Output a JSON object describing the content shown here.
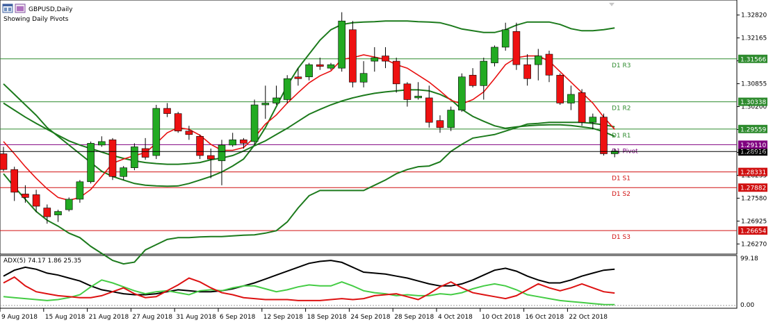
{
  "header": {
    "symbol_label": "GBPUSD,Daily",
    "subtitle": "Showing Daily Pivots"
  },
  "indicator": {
    "label": "ADX(5) 74.17 1.86 25.35",
    "scale_top": "99.18",
    "scale_bottom": "0.00"
  },
  "colors": {
    "bull": "#22aa22",
    "bear": "#ee1111",
    "bollinger": "#1c7a1c",
    "ma": "#e81010",
    "r_level": "#2e8b2e",
    "s_level": "#d01010",
    "pivot": "#800080",
    "adx": "#000000",
    "plus_di": "#44cc44",
    "minus_di": "#dd1111"
  },
  "chart_data": [
    {
      "type": "candlestick",
      "title": "GBPUSD,Daily",
      "price_axis_labels": [
        "1.32820",
        "1.32165",
        "1.31510",
        "1.30855",
        "1.30200",
        "1.29545",
        "1.28890",
        "1.28235",
        "1.27580",
        "1.26925",
        "1.26270"
      ],
      "date_labels": [
        "9 Aug 2018",
        "15 Aug 2018",
        "21 Aug 2018",
        "27 Aug 2018",
        "31 Aug 2018",
        "6 Sep 2018",
        "12 Sep 2018",
        "18 Sep 2018",
        "24 Sep 2018",
        "28 Sep 2018",
        "4 Oct 2018",
        "10 Oct 2018",
        "16 Oct 2018",
        "22 Oct 2018"
      ],
      "ylim": [
        1.2598,
        1.3325
      ],
      "candles": [
        {
          "o": 1.2885,
          "h": 1.2905,
          "l": 1.2835,
          "c": 1.284
        },
        {
          "o": 1.284,
          "h": 1.2848,
          "l": 1.275,
          "c": 1.2775
        },
        {
          "o": 1.277,
          "h": 1.2795,
          "l": 1.2745,
          "c": 1.276
        },
        {
          "o": 1.2768,
          "h": 1.2782,
          "l": 1.2718,
          "c": 1.2735
        },
        {
          "o": 1.273,
          "h": 1.274,
          "l": 1.2685,
          "c": 1.2705
        },
        {
          "o": 1.271,
          "h": 1.2725,
          "l": 1.269,
          "c": 1.272
        },
        {
          "o": 1.2725,
          "h": 1.276,
          "l": 1.272,
          "c": 1.2755
        },
        {
          "o": 1.2755,
          "h": 1.281,
          "l": 1.2745,
          "c": 1.2805
        },
        {
          "o": 1.2805,
          "h": 1.292,
          "l": 1.28,
          "c": 1.2915
        },
        {
          "o": 1.291,
          "h": 1.2935,
          "l": 1.2905,
          "c": 1.292
        },
        {
          "o": 1.2925,
          "h": 1.293,
          "l": 1.281,
          "c": 1.282
        },
        {
          "o": 1.282,
          "h": 1.285,
          "l": 1.281,
          "c": 1.2845
        },
        {
          "o": 1.2845,
          "h": 1.2915,
          "l": 1.2838,
          "c": 1.2905
        },
        {
          "o": 1.29,
          "h": 1.293,
          "l": 1.2868,
          "c": 1.2875
        },
        {
          "o": 1.288,
          "h": 1.3025,
          "l": 1.287,
          "c": 1.3015
        },
        {
          "o": 1.3015,
          "h": 1.303,
          "l": 1.299,
          "c": 1.3
        },
        {
          "o": 1.3,
          "h": 1.3005,
          "l": 1.2945,
          "c": 1.295
        },
        {
          "o": 1.295,
          "h": 1.2965,
          "l": 1.2925,
          "c": 1.294
        },
        {
          "o": 1.2935,
          "h": 1.294,
          "l": 1.287,
          "c": 1.288
        },
        {
          "o": 1.288,
          "h": 1.29,
          "l": 1.2815,
          "c": 1.287
        },
        {
          "o": 1.2865,
          "h": 1.2925,
          "l": 1.2795,
          "c": 1.291
        },
        {
          "o": 1.291,
          "h": 1.2945,
          "l": 1.2905,
          "c": 1.2925
        },
        {
          "o": 1.2925,
          "h": 1.293,
          "l": 1.29,
          "c": 1.2915
        },
        {
          "o": 1.292,
          "h": 1.304,
          "l": 1.291,
          "c": 1.3025
        },
        {
          "o": 1.3025,
          "h": 1.308,
          "l": 1.2985,
          "c": 1.303
        },
        {
          "o": 1.303,
          "h": 1.308,
          "l": 1.3025,
          "c": 1.3045
        },
        {
          "o": 1.304,
          "h": 1.311,
          "l": 1.303,
          "c": 1.31
        },
        {
          "o": 1.3105,
          "h": 1.313,
          "l": 1.308,
          "c": 1.31
        },
        {
          "o": 1.3105,
          "h": 1.3145,
          "l": 1.3095,
          "c": 1.314
        },
        {
          "o": 1.314,
          "h": 1.316,
          "l": 1.3125,
          "c": 1.3135
        },
        {
          "o": 1.313,
          "h": 1.3145,
          "l": 1.3125,
          "c": 1.314
        },
        {
          "o": 1.313,
          "h": 1.329,
          "l": 1.312,
          "c": 1.3265
        },
        {
          "o": 1.324,
          "h": 1.3265,
          "l": 1.3075,
          "c": 1.309
        },
        {
          "o": 1.309,
          "h": 1.315,
          "l": 1.3075,
          "c": 1.3115
        },
        {
          "o": 1.315,
          "h": 1.319,
          "l": 1.312,
          "c": 1.316
        },
        {
          "o": 1.3165,
          "h": 1.319,
          "l": 1.313,
          "c": 1.315
        },
        {
          "o": 1.315,
          "h": 1.316,
          "l": 1.306,
          "c": 1.3085
        },
        {
          "o": 1.3085,
          "h": 1.309,
          "l": 1.302,
          "c": 1.304
        },
        {
          "o": 1.3045,
          "h": 1.309,
          "l": 1.304,
          "c": 1.305
        },
        {
          "o": 1.3045,
          "h": 1.308,
          "l": 1.296,
          "c": 1.2975
        },
        {
          "o": 1.298,
          "h": 1.2995,
          "l": 1.2945,
          "c": 1.296
        },
        {
          "o": 1.296,
          "h": 1.302,
          "l": 1.295,
          "c": 1.301
        },
        {
          "o": 1.301,
          "h": 1.3115,
          "l": 1.3005,
          "c": 1.3105
        },
        {
          "o": 1.311,
          "h": 1.313,
          "l": 1.3075,
          "c": 1.308
        },
        {
          "o": 1.308,
          "h": 1.316,
          "l": 1.304,
          "c": 1.315
        },
        {
          "o": 1.3145,
          "h": 1.3195,
          "l": 1.3135,
          "c": 1.319
        },
        {
          "o": 1.319,
          "h": 1.326,
          "l": 1.318,
          "c": 1.324
        },
        {
          "o": 1.3235,
          "h": 1.326,
          "l": 1.3125,
          "c": 1.314
        },
        {
          "o": 1.314,
          "h": 1.317,
          "l": 1.308,
          "c": 1.31
        },
        {
          "o": 1.314,
          "h": 1.3185,
          "l": 1.3095,
          "c": 1.3165
        },
        {
          "o": 1.317,
          "h": 1.318,
          "l": 1.309,
          "c": 1.311
        },
        {
          "o": 1.311,
          "h": 1.3115,
          "l": 1.3025,
          "c": 1.303
        },
        {
          "o": 1.303,
          "h": 1.308,
          "l": 1.301,
          "c": 1.3055
        },
        {
          "o": 1.306,
          "h": 1.307,
          "l": 1.2965,
          "c": 1.2975
        },
        {
          "o": 1.2975,
          "h": 1.3,
          "l": 1.2955,
          "c": 1.299
        },
        {
          "o": 1.299,
          "h": 1.3,
          "l": 1.288,
          "c": 1.2885
        },
        {
          "o": 1.2885,
          "h": 1.29,
          "l": 1.2875,
          "c": 1.2893
        }
      ],
      "bollinger_upper": [
        1.3085,
        1.3055,
        1.3025,
        1.2995,
        1.296,
        1.2935,
        1.291,
        1.2885,
        1.286,
        1.2835,
        1.282,
        1.281,
        1.28,
        1.2795,
        1.2793,
        1.2792,
        1.2793,
        1.28,
        1.281,
        1.282,
        1.2833,
        1.285,
        1.287,
        1.291,
        1.296,
        1.302,
        1.308,
        1.313,
        1.317,
        1.321,
        1.324,
        1.3255,
        1.326,
        1.3262,
        1.3263,
        1.3265,
        1.3265,
        1.3265,
        1.3263,
        1.3262,
        1.326,
        1.3252,
        1.3242,
        1.3237,
        1.3232,
        1.3232,
        1.324,
        1.3253,
        1.3262,
        1.3262,
        1.3262,
        1.3255,
        1.3243,
        1.3237,
        1.3237,
        1.324,
        1.3245
      ],
      "bollinger_mid": [
        1.303,
        1.301,
        1.299,
        1.2972,
        1.2955,
        1.2938,
        1.2922,
        1.291,
        1.29,
        1.289,
        1.288,
        1.2872,
        1.2865,
        1.286,
        1.2857,
        1.2855,
        1.2855,
        1.2857,
        1.286,
        1.2868,
        1.2873,
        1.288,
        1.2893,
        1.2908,
        1.2922,
        1.294,
        1.2958,
        1.2978,
        1.2998,
        1.3012,
        1.3025,
        1.3036,
        1.3045,
        1.3052,
        1.3058,
        1.3062,
        1.3065,
        1.3068,
        1.3068,
        1.3065,
        1.3055,
        1.304,
        1.3012,
        1.2992,
        1.2978,
        1.2965,
        1.2958,
        1.2962,
        1.2965,
        1.2967,
        1.2968,
        1.2968,
        1.2966,
        1.2962,
        1.2958,
        1.2948,
        1.2935
      ],
      "bollinger_lower": [
        1.2828,
        1.279,
        1.2755,
        1.272,
        1.2695,
        1.2678,
        1.2658,
        1.2645,
        1.262,
        1.26,
        1.258,
        1.257,
        1.2575,
        1.261,
        1.2625,
        1.264,
        1.2645,
        1.2645,
        1.2647,
        1.2648,
        1.2648,
        1.265,
        1.2652,
        1.2653,
        1.2658,
        1.2665,
        1.269,
        1.273,
        1.2765,
        1.278,
        1.278,
        1.278,
        1.278,
        1.278,
        1.2795,
        1.281,
        1.2828,
        1.284,
        1.2848,
        1.285,
        1.2862,
        1.2892,
        1.2912,
        1.293,
        1.2935,
        1.294,
        1.295,
        1.296,
        1.297,
        1.2972,
        1.2975,
        1.2975,
        1.2975,
        1.2975,
        1.2972,
        1.2968,
        1.2962
      ],
      "moving_average": [
        1.292,
        1.2885,
        1.2848,
        1.2815,
        1.2785,
        1.276,
        1.2752,
        1.276,
        1.2783,
        1.282,
        1.2858,
        1.287,
        1.288,
        1.2888,
        1.2915,
        1.2945,
        1.296,
        1.2955,
        1.2938,
        1.2912,
        1.2895,
        1.2895,
        1.2903,
        1.2932,
        1.297,
        1.2996,
        1.303,
        1.306,
        1.3088,
        1.3108,
        1.3122,
        1.3155,
        1.316,
        1.3168,
        1.3162,
        1.3155,
        1.314,
        1.313,
        1.311,
        1.309,
        1.3065,
        1.3038,
        1.3028,
        1.304,
        1.3062,
        1.31,
        1.314,
        1.316,
        1.3165,
        1.3165,
        1.315,
        1.312,
        1.309,
        1.306,
        1.303,
        1.299,
        1.2955
      ],
      "levels": [
        {
          "name": "D1 R3",
          "value": 1.31566,
          "label": "1.31566",
          "kind": "r"
        },
        {
          "name": "D1 R2",
          "value": 1.30338,
          "label": "1.30338",
          "kind": "r"
        },
        {
          "name": "D1 R1",
          "value": 1.29559,
          "label": "1.29559",
          "kind": "r"
        },
        {
          "name": "D1 Pivot",
          "value": 1.2911,
          "label": "1.29110",
          "kind": "p"
        },
        {
          "name": "D1 S1",
          "value": 1.28331,
          "label": "1.28331",
          "kind": "s"
        },
        {
          "name": "D1 S2",
          "value": 1.27882,
          "label": "1.27882",
          "kind": "s"
        },
        {
          "name": "D1 S3",
          "value": 1.26654,
          "label": "1.26654",
          "kind": "s"
        }
      ],
      "current_price": {
        "value": 1.28916,
        "label": "1.28916"
      }
    },
    {
      "type": "line",
      "title": "ADX(5) 74.17 1.86 25.35",
      "ylim": [
        0,
        99.18
      ],
      "series": [
        {
          "values": [
            60,
            72,
            78,
            74,
            66,
            62,
            56,
            50,
            40,
            32,
            28,
            24,
            22,
            22,
            24,
            28,
            32,
            30,
            28,
            28,
            30,
            34,
            40,
            46,
            54,
            62,
            70,
            78,
            86,
            90,
            92,
            88,
            78,
            68,
            66,
            64,
            60,
            56,
            50,
            44,
            40,
            40,
            44,
            52,
            62,
            72,
            76,
            70,
            60,
            52,
            46,
            46,
            52,
            60,
            66,
            72,
            74.17
          ]
        },
        {
          "values": [
            18,
            16,
            14,
            12,
            10,
            12,
            16,
            22,
            38,
            52,
            46,
            38,
            30,
            24,
            28,
            30,
            26,
            22,
            30,
            32,
            30,
            36,
            40,
            40,
            34,
            28,
            32,
            38,
            42,
            40,
            40,
            48,
            40,
            30,
            26,
            24,
            20,
            22,
            20,
            20,
            24,
            22,
            26,
            34,
            40,
            44,
            40,
            32,
            22,
            18,
            14,
            10,
            8,
            6,
            4,
            2,
            1.86
          ]
        },
        {
          "values": [
            46,
            58,
            40,
            28,
            24,
            20,
            18,
            16,
            16,
            20,
            28,
            36,
            24,
            16,
            18,
            30,
            42,
            56,
            48,
            36,
            26,
            22,
            16,
            14,
            12,
            12,
            12,
            10,
            10,
            10,
            12,
            14,
            12,
            14,
            20,
            22,
            24,
            18,
            12,
            24,
            38,
            48,
            36,
            26,
            22,
            18,
            14,
            20,
            32,
            44,
            36,
            30,
            36,
            44,
            36,
            28,
            25.35
          ]
        }
      ]
    }
  ]
}
